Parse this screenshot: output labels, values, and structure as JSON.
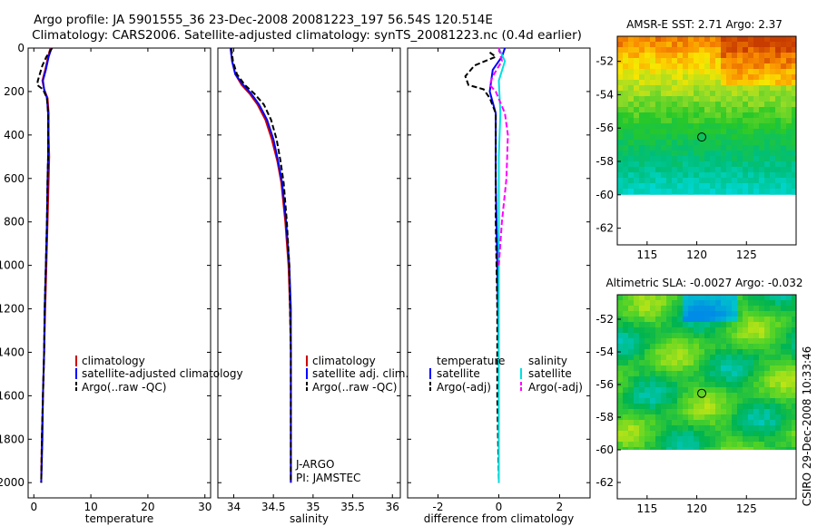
{
  "figure": {
    "title_line1": "Argo profile: JA 5901555_36 23-Dec-2008 20081223_197 56.54S 120.514E",
    "title_line2": "Climatology: CARS2006. Satellite-adjusted climatology: synTS_20081223.nc (0.4d earlier)",
    "side_stamp": "CSIRO 29-Dec-2008 10:33:46",
    "pi_lines": [
      "J-ARGO",
      "PI: JAMSTEC"
    ]
  },
  "colors": {
    "climatology": "#cc0000",
    "satellite": "#0000ff",
    "argo": "#000000",
    "sat_sal": "#00e0e0",
    "argo_sal": "#ff00ff"
  },
  "chart_data": [
    {
      "type": "line",
      "xlabel": "temperature",
      "ylabel": "",
      "xlim": [
        -1,
        31
      ],
      "ylim": [
        2070,
        0
      ],
      "xticks": [
        0,
        10,
        20,
        30
      ],
      "yticks": [
        0,
        200,
        400,
        600,
        800,
        1000,
        1200,
        1400,
        1600,
        1800,
        2000
      ],
      "legend": [
        "climatology",
        "satellite-adjusted climatology",
        "Argo(..raw -QC)"
      ],
      "series": [
        {
          "name": "climatology",
          "style": "solid",
          "color": "#cc0000",
          "points": [
            [
              2.9,
              0
            ],
            [
              2.5,
              40
            ],
            [
              2.0,
              100
            ],
            [
              1.5,
              150
            ],
            [
              1.8,
              190
            ],
            [
              2.4,
              230
            ],
            [
              2.6,
              300
            ],
            [
              2.6,
              400
            ],
            [
              2.7,
              500
            ],
            [
              2.6,
              600
            ],
            [
              2.4,
              800
            ],
            [
              2.2,
              1000
            ],
            [
              2.0,
              1200
            ],
            [
              1.8,
              1400
            ],
            [
              1.6,
              1600
            ],
            [
              1.4,
              1800
            ],
            [
              1.3,
              2000
            ]
          ]
        },
        {
          "name": "satellite-adjusted climatology",
          "style": "solid",
          "color": "#0000ff",
          "points": [
            [
              3.1,
              0
            ],
            [
              2.6,
              40
            ],
            [
              2.1,
              100
            ],
            [
              1.6,
              150
            ],
            [
              1.8,
              190
            ],
            [
              2.3,
              230
            ],
            [
              2.5,
              300
            ],
            [
              2.5,
              400
            ],
            [
              2.5,
              500
            ],
            [
              2.4,
              600
            ],
            [
              2.3,
              800
            ],
            [
              2.1,
              1000
            ],
            [
              1.9,
              1200
            ],
            [
              1.8,
              1400
            ],
            [
              1.6,
              1600
            ],
            [
              1.5,
              1800
            ],
            [
              1.3,
              2000
            ]
          ]
        },
        {
          "name": "Argo(..raw -QC)",
          "style": "dashed",
          "color": "#000000",
          "points": [
            [
              3.2,
              0
            ],
            [
              2.2,
              40
            ],
            [
              1.5,
              80
            ],
            [
              0.7,
              150
            ],
            [
              0.6,
              170
            ],
            [
              1.6,
              190
            ],
            [
              2.3,
              230
            ],
            [
              2.5,
              300
            ],
            [
              2.5,
              400
            ],
            [
              2.5,
              500
            ],
            [
              2.4,
              600
            ],
            [
              2.3,
              800
            ],
            [
              2.1,
              1000
            ],
            [
              1.9,
              1200
            ],
            [
              1.8,
              1400
            ],
            [
              1.6,
              1600
            ],
            [
              1.4,
              1800
            ],
            [
              1.3,
              2000
            ]
          ]
        }
      ]
    },
    {
      "type": "line",
      "xlabel": "salinity",
      "ylabel": "",
      "xlim": [
        33.8,
        36.1
      ],
      "ylim": [
        2070,
        0
      ],
      "xticks": [
        34,
        34.5,
        35,
        35.5,
        36
      ],
      "legend": [
        "climatology",
        "satellite adj. clim.",
        "Argo(..raw -QC)"
      ],
      "series": [
        {
          "name": "climatology",
          "style": "solid",
          "color": "#cc0000",
          "points": [
            [
              33.96,
              0
            ],
            [
              33.98,
              60
            ],
            [
              34.02,
              120
            ],
            [
              34.1,
              170
            ],
            [
              34.2,
              210
            ],
            [
              34.3,
              260
            ],
            [
              34.4,
              330
            ],
            [
              34.48,
              420
            ],
            [
              34.55,
              520
            ],
            [
              34.6,
              620
            ],
            [
              34.65,
              800
            ],
            [
              34.69,
              1000
            ],
            [
              34.71,
              1200
            ],
            [
              34.72,
              1400
            ],
            [
              34.72,
              1600
            ],
            [
              34.72,
              1800
            ],
            [
              34.72,
              2000
            ]
          ]
        },
        {
          "name": "satellite adj. clim.",
          "style": "solid",
          "color": "#0000ff",
          "points": [
            [
              33.96,
              0
            ],
            [
              33.98,
              60
            ],
            [
              34.02,
              120
            ],
            [
              34.12,
              170
            ],
            [
              34.22,
              210
            ],
            [
              34.32,
              260
            ],
            [
              34.42,
              330
            ],
            [
              34.5,
              420
            ],
            [
              34.56,
              520
            ],
            [
              34.61,
              620
            ],
            [
              34.66,
              800
            ],
            [
              34.7,
              1000
            ],
            [
              34.72,
              1200
            ],
            [
              34.72,
              1400
            ],
            [
              34.72,
              1600
            ],
            [
              34.72,
              1800
            ],
            [
              34.72,
              2000
            ]
          ]
        },
        {
          "name": "Argo(..raw -QC)",
          "style": "dashed",
          "color": "#000000",
          "points": [
            [
              33.97,
              0
            ],
            [
              33.99,
              60
            ],
            [
              34.04,
              120
            ],
            [
              34.14,
              170
            ],
            [
              34.26,
              210
            ],
            [
              34.38,
              260
            ],
            [
              34.47,
              330
            ],
            [
              34.54,
              420
            ],
            [
              34.59,
              520
            ],
            [
              34.63,
              620
            ],
            [
              34.67,
              800
            ],
            [
              34.7,
              1000
            ],
            [
              34.71,
              1200
            ],
            [
              34.72,
              1400
            ],
            [
              34.72,
              1600
            ],
            [
              34.72,
              1800
            ],
            [
              34.72,
              2000
            ]
          ]
        }
      ]
    },
    {
      "type": "line",
      "xlabel": "difference from climatology",
      "ylabel": "",
      "xlim": [
        -3.0,
        3.0
      ],
      "ylim": [
        2070,
        0
      ],
      "xticks": [
        -2,
        0,
        2
      ],
      "legend": [
        "temperature",
        "satellite",
        "Argo(-adj)",
        "salinity",
        "satellite",
        "Argo(-adj)"
      ],
      "series": [
        {
          "name": "temperature satellite",
          "style": "solid",
          "color": "#0000ff",
          "points": [
            [
              0.2,
              0
            ],
            [
              0.1,
              40
            ],
            [
              -0.2,
              100
            ],
            [
              -0.3,
              200
            ],
            [
              -0.1,
              300
            ],
            [
              -0.1,
              400
            ],
            [
              -0.1,
              600
            ],
            [
              -0.05,
              1000
            ],
            [
              0.0,
              1400
            ],
            [
              0.0,
              2000
            ]
          ]
        },
        {
          "name": "temperature Argo(-adj)",
          "style": "dashed",
          "color": "#000000",
          "points": [
            [
              -0.3,
              20
            ],
            [
              -0.1,
              40
            ],
            [
              -0.8,
              80
            ],
            [
              -1.1,
              130
            ],
            [
              -1.0,
              170
            ],
            [
              -0.5,
              190
            ],
            [
              -0.3,
              230
            ],
            [
              -0.1,
              300
            ],
            [
              -0.1,
              500
            ],
            [
              -0.1,
              800
            ],
            [
              -0.05,
              1200
            ],
            [
              -0.05,
              1600
            ],
            [
              0.0,
              2000
            ]
          ]
        },
        {
          "name": "salinity satellite",
          "style": "solid",
          "color": "#00e0e0",
          "points": [
            [
              0.0,
              0
            ],
            [
              0.2,
              60
            ],
            [
              0.0,
              150
            ],
            [
              0.05,
              300
            ],
            [
              0.0,
              500
            ],
            [
              0.0,
              1000
            ],
            [
              0.0,
              1500
            ],
            [
              0.0,
              2000
            ]
          ]
        },
        {
          "name": "salinity Argo(-adj)",
          "style": "dashed",
          "color": "#ff00ff",
          "points": [
            [
              0.0,
              0
            ],
            [
              0.1,
              60
            ],
            [
              -0.2,
              130
            ],
            [
              -0.3,
              170
            ],
            [
              -0.1,
              200
            ],
            [
              0.2,
              300
            ],
            [
              0.3,
              400
            ],
            [
              0.25,
              600
            ],
            [
              0.1,
              800
            ],
            [
              0.0,
              1000
            ]
          ]
        }
      ]
    }
  ],
  "maps": [
    {
      "title": "AMSR-E SST: 2.71 Argo: 2.37",
      "xlim": [
        112,
        130
      ],
      "ylim": [
        -63,
        -50.5
      ],
      "xticks": [
        115,
        120,
        125
      ],
      "yticks": [
        -52,
        -54,
        -56,
        -58,
        -60,
        -62
      ],
      "data_bottom": -60,
      "marker": [
        120.5,
        -56.54
      ],
      "palette": "sst"
    },
    {
      "title": "Altimetric SLA: -0.0027 Argo: -0.032",
      "xlim": [
        112,
        130
      ],
      "ylim": [
        -63,
        -50.5
      ],
      "xticks": [
        115,
        120,
        125
      ],
      "yticks": [
        -52,
        -54,
        -56,
        -58,
        -60,
        -62
      ],
      "data_bottom": -60,
      "marker": [
        120.5,
        -56.54
      ],
      "palette": "sla"
    }
  ]
}
